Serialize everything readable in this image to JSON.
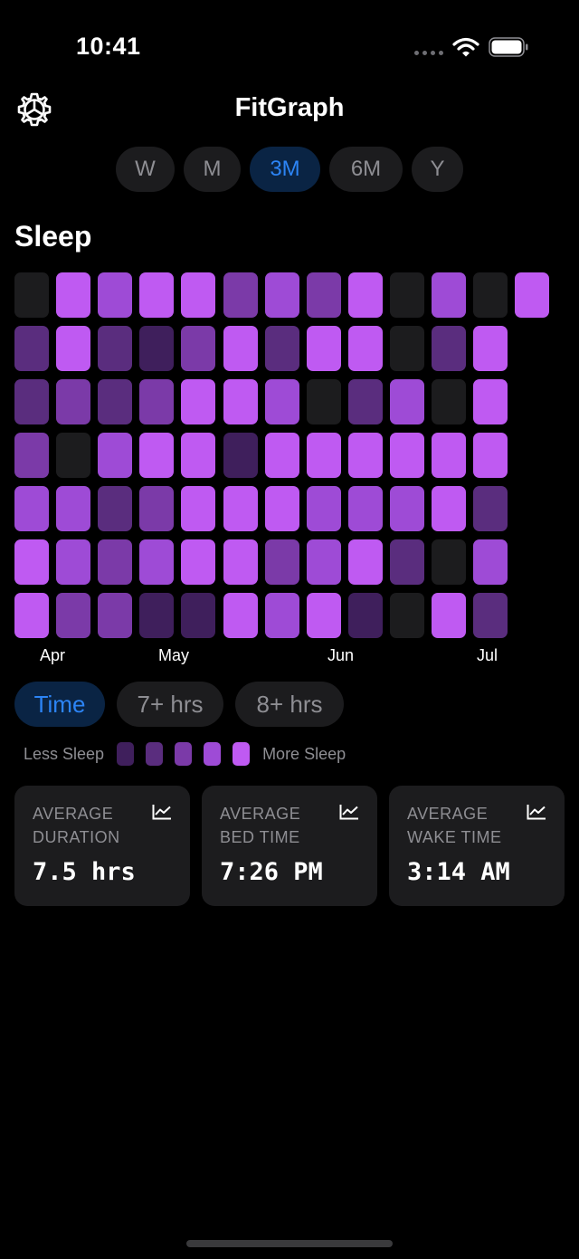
{
  "status": {
    "time": "10:41"
  },
  "header": {
    "title": "FitGraph"
  },
  "ranges": [
    {
      "label": "W",
      "active": false
    },
    {
      "label": "M",
      "active": false
    },
    {
      "label": "3M",
      "active": true
    },
    {
      "label": "6M",
      "active": false
    },
    {
      "label": "Y",
      "active": false
    }
  ],
  "section": {
    "title": "Sleep"
  },
  "heatmap": {
    "months": [
      "Apr",
      "May",
      "Jun",
      "Jul"
    ],
    "level_colors": [
      "#1c1c1e",
      "#3f1f5c",
      "#5a2d7e",
      "#7b3aa8",
      "#9e4bd6",
      "#bf5af2"
    ],
    "weeks": [
      [
        0,
        2,
        2,
        3,
        4,
        5,
        5
      ],
      [
        5,
        5,
        3,
        0,
        4,
        4,
        3
      ],
      [
        4,
        2,
        2,
        4,
        2,
        3,
        3
      ],
      [
        5,
        1,
        3,
        5,
        3,
        4,
        1
      ],
      [
        5,
        3,
        5,
        5,
        5,
        5,
        1
      ],
      [
        3,
        5,
        5,
        1,
        5,
        5,
        5
      ],
      [
        4,
        2,
        4,
        5,
        5,
        3,
        4
      ],
      [
        3,
        5,
        0,
        5,
        4,
        4,
        5
      ],
      [
        5,
        5,
        2,
        5,
        4,
        5,
        1
      ],
      [
        0,
        0,
        4,
        5,
        4,
        2,
        0
      ],
      [
        4,
        2,
        0,
        5,
        5,
        0,
        5
      ],
      [
        0,
        5,
        5,
        5,
        2,
        4,
        2
      ],
      [
        5
      ]
    ]
  },
  "filters": [
    {
      "label": "Time",
      "active": true
    },
    {
      "label": "7+ hrs",
      "active": false
    },
    {
      "label": "8+ hrs",
      "active": false
    }
  ],
  "legend": {
    "less": "Less Sleep",
    "more": "More Sleep",
    "swatches": [
      "#3f1f5c",
      "#5a2d7e",
      "#7b3aa8",
      "#9e4bd6",
      "#bf5af2"
    ]
  },
  "stats": [
    {
      "label": "AVERAGE DURATION",
      "value": "7.5 hrs"
    },
    {
      "label": "AVERAGE BED TIME",
      "value": "7:26 PM"
    },
    {
      "label": "AVERAGE WAKE TIME",
      "value": "3:14 AM"
    }
  ]
}
